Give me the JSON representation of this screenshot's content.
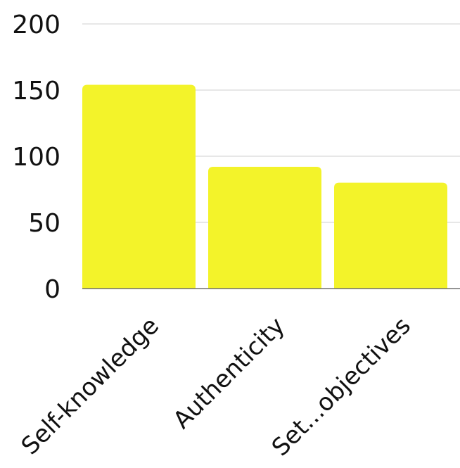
{
  "chart_data": {
    "type": "bar",
    "categories": [
      "Self-knowledge",
      "Authenticity",
      "Set...objectives"
    ],
    "values": [
      154,
      92,
      80
    ],
    "ylim": [
      0,
      200
    ],
    "yticks": [
      0,
      50,
      100,
      150,
      200
    ],
    "grid": true,
    "bar_color": "#f3f32a",
    "title": "",
    "xlabel": "",
    "ylabel": ""
  }
}
